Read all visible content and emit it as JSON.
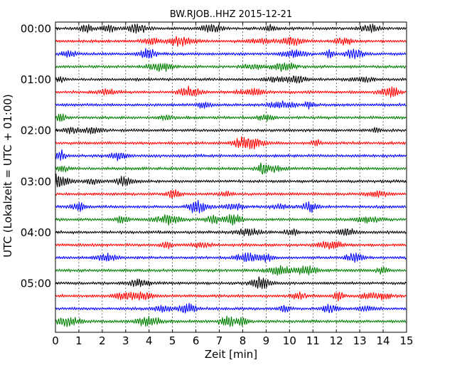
{
  "chart_data": {
    "type": "line",
    "title": "BW.RJOB..HHZ 2015-12-21",
    "xlabel": "Zeit  [min]",
    "ylabel": "UTC (Lokalzeit = UTC + 01:00)",
    "xlim": [
      0,
      15
    ],
    "x_ticks": [
      "0",
      "1",
      "2",
      "3",
      "4",
      "5",
      "6",
      "7",
      "8",
      "9",
      "10",
      "11",
      "12",
      "13",
      "14",
      "15"
    ],
    "y_ticks": [
      "00:00",
      "01:00",
      "02:00",
      "03:00",
      "04:00",
      "05:00"
    ],
    "row_interval_minutes": 15,
    "row_count": 24,
    "row_colors": [
      "#000000",
      "#ff0000",
      "#0000ff",
      "#008000"
    ],
    "grid": "vertical dotted at each minute"
  }
}
